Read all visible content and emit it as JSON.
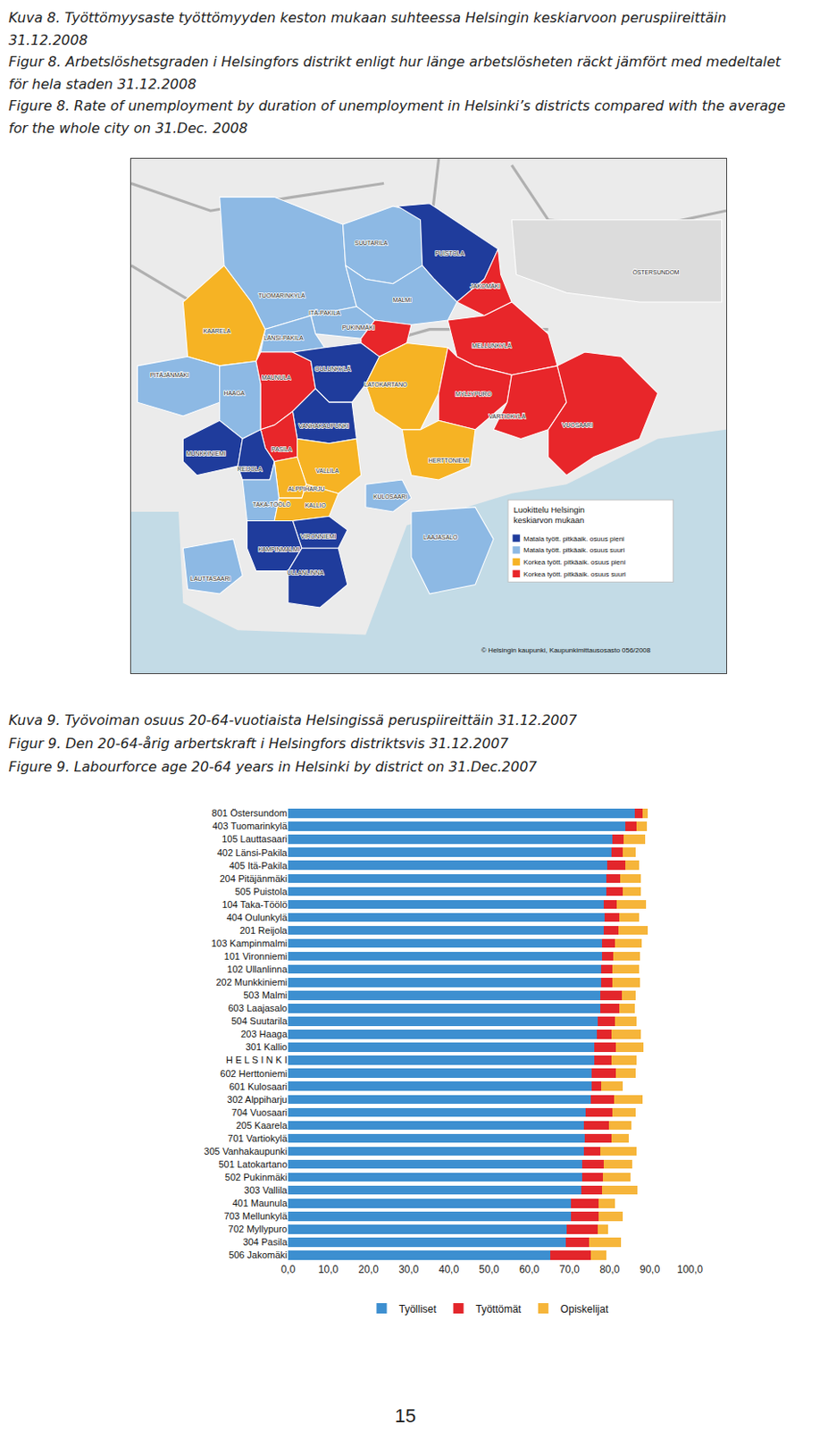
{
  "document": {
    "figure8": {
      "captions": [
        "Kuva 8. Työttömyysaste työttömyyden keston mukaan suhteessa Helsingin keskiarvoon peruspiireittäin 31.12.2008",
        "Figur 8. Arbetslöshetsgraden i Helsingfors distrikt enligt hur länge arbetslösheten räckt jämfört med medeltalet för hela staden 31.12.2008",
        "Figure 8. Rate of unemployment by duration of unemployment in Helsinki’s districts compared with the average for the whole city on 31.Dec. 2008"
      ],
      "map": {
        "districts": [
          {
            "name": "KAARELA",
            "category": 2
          },
          {
            "name": "TUOMARINKYLÄ",
            "category": 1
          },
          {
            "name": "SUUTARILA",
            "category": 1
          },
          {
            "name": "PUISTOLA",
            "category": 0
          },
          {
            "name": "MALMI",
            "category": 1
          },
          {
            "name": "JAKOMÄKI",
            "category": 3
          },
          {
            "name": "ÖSTERSUNDOM",
            "category": null
          },
          {
            "name": "ITÄ-PAKILA",
            "category": 1
          },
          {
            "name": "PUKINMÄKI",
            "category": 3
          },
          {
            "name": "LÄNSI-PAKILA",
            "category": 1
          },
          {
            "name": "MELLUNKYLÄ",
            "category": 3
          },
          {
            "name": "PITÄJÄNMÄKI",
            "category": 1
          },
          {
            "name": "HAAGA",
            "category": 1
          },
          {
            "name": "MAUNULA",
            "category": 3
          },
          {
            "name": "OULUNKYLÄ",
            "category": 0
          },
          {
            "name": "LATOKARTANO",
            "category": 2
          },
          {
            "name": "MYLLYPURO",
            "category": 3
          },
          {
            "name": "VARTIOKYLÄ",
            "category": 3
          },
          {
            "name": "VUOSAARI",
            "category": 3
          },
          {
            "name": "VANHAKAUPUNKI",
            "category": 0
          },
          {
            "name": "PASILA",
            "category": 3
          },
          {
            "name": "MUNKKINIEMI",
            "category": 0
          },
          {
            "name": "REIJOLA",
            "category": 0
          },
          {
            "name": "VALLILA",
            "category": 2
          },
          {
            "name": "HERTTONIEMI",
            "category": 2
          },
          {
            "name": "ALPPIHARJU",
            "category": 2
          },
          {
            "name": "KULOSAARI",
            "category": 1
          },
          {
            "name": "TAKA-TÖÖLÖ",
            "category": 1
          },
          {
            "name": "KALLIO",
            "category": 2
          },
          {
            "name": "VIRONNIEMI",
            "category": 0
          },
          {
            "name": "KAMPINMALMI",
            "category": 0
          },
          {
            "name": "LAAJASALO",
            "category": 1
          },
          {
            "name": "LAUTTASAARI",
            "category": 1
          },
          {
            "name": "ULLANLINNA",
            "category": 0
          }
        ],
        "legend": {
          "title": [
            "Luokittelu Helsingin",
            "keskiarvon mukaan"
          ],
          "entries": [
            {
              "label": "Matala tyött. pitkäaik. osuus pieni",
              "color": "#1f3c9c"
            },
            {
              "label": "Matala tyött. pitkäaik. osuus suuri",
              "color": "#8db9e4"
            },
            {
              "label": "Korkea tyött. pitkäaik. osuus pieni",
              "color": "#f6b324"
            },
            {
              "label": "Korkea tyött. pitkäaik. osuus suuri",
              "color": "#e8262a"
            }
          ]
        },
        "credit": "© Helsingin kaupunki, Kaupunkimittausosasto 056/2008"
      }
    },
    "figure9": {
      "captions": [
        "Kuva 9. Työvoiman osuus 20-64-vuotiaista Helsingissä peruspiireittäin 31.12.2007",
        "Figur 9. Den 20-64-årig arbertskraft i Helsingfors distriktsvis 31.12.2007",
        "Figure 9. Labourforce age 20-64 years in Helsinki by district on 31.Dec.2007"
      ]
    },
    "page_number": "15"
  },
  "chart_data": {
    "type": "bar",
    "orientation": "horizontal",
    "stacked": true,
    "grid": false,
    "legend": "bottom",
    "categories": [
      "801 Östersundom",
      "403 Tuomarinkylä",
      "105 Lauttasaari",
      "402 Länsi-Pakila",
      "405 Itä-Pakila",
      "204 Pitäjänmäki",
      "505 Puistola",
      "104 Taka-Töölö",
      "404 Oulunkylä",
      "201 Reijola",
      "103 Kampinmalmi",
      "101 Vironniemi",
      "102 Ullanlinna",
      "202 Munkkiniemi",
      "503 Malmi",
      "603 Laajasalo",
      "504 Suutarila",
      "203 Haaga",
      "301 Kallio",
      "H E L S I N K I",
      "602 Herttoniemi",
      "601 Kulosaari",
      "302 Alppiharju",
      "704 Vuosaari",
      "205 Kaarela",
      "701 Vartiokylä",
      "305 Vanhakaupunki",
      "501 Latokartano",
      "502 Pukinmäki",
      "303 Vallila",
      "401 Maunula",
      "703 Mellunkylä",
      "702 Myllypuro",
      "304 Pasila",
      "506 Jakomäki"
    ],
    "series": [
      {
        "name": "Työlliset",
        "color": "#3d8fd0",
        "values": [
          86.3,
          83.9,
          80.7,
          80.5,
          79.4,
          79.1,
          79.1,
          78.5,
          78.7,
          78.5,
          78.2,
          78.2,
          78.0,
          78.0,
          77.6,
          77.6,
          77.1,
          76.9,
          76.2,
          76.2,
          75.5,
          75.5,
          75.3,
          74.1,
          73.7,
          73.9,
          73.5,
          73.2,
          73.2,
          73.0,
          70.3,
          70.3,
          69.4,
          69.2,
          65.3
        ]
      },
      {
        "name": "Työttömät",
        "color": "#e3262b",
        "values": [
          1.8,
          2.7,
          2.7,
          2.7,
          4.5,
          3.6,
          4.1,
          3.2,
          3.6,
          3.6,
          3.2,
          2.7,
          2.7,
          2.7,
          5.4,
          4.8,
          4.3,
          3.6,
          5.4,
          4.3,
          6.1,
          2.3,
          5.9,
          6.6,
          6.1,
          6.6,
          4.1,
          5.4,
          5.2,
          5.2,
          7.0,
          7.0,
          7.7,
          5.7,
          10.0
        ]
      },
      {
        "name": "Opiskelijat",
        "color": "#f6b53a",
        "values": [
          1.4,
          2.7,
          5.4,
          3.2,
          3.4,
          5.0,
          4.5,
          7.3,
          5.0,
          7.3,
          6.6,
          6.6,
          6.6,
          6.8,
          3.4,
          3.9,
          5.4,
          7.3,
          6.8,
          6.1,
          4.8,
          5.4,
          7.0,
          5.7,
          5.7,
          4.3,
          9.1,
          7.0,
          6.8,
          8.8,
          4.1,
          5.9,
          2.5,
          7.9,
          3.9
        ]
      }
    ],
    "xlim": [
      0,
      100
    ],
    "xticks": [
      {
        "value": 0,
        "label": "0,0"
      },
      {
        "value": 10,
        "label": "10,0"
      },
      {
        "value": 20,
        "label": "20,0"
      },
      {
        "value": 30,
        "label": "30,0"
      },
      {
        "value": 40,
        "label": "40,0"
      },
      {
        "value": 50,
        "label": "50,0"
      },
      {
        "value": 60,
        "label": "60,0"
      },
      {
        "value": 70,
        "label": "70,0"
      },
      {
        "value": 80,
        "label": "80,0"
      },
      {
        "value": 90,
        "label": "90,0"
      },
      {
        "value": 100,
        "label": "100,0"
      }
    ]
  }
}
